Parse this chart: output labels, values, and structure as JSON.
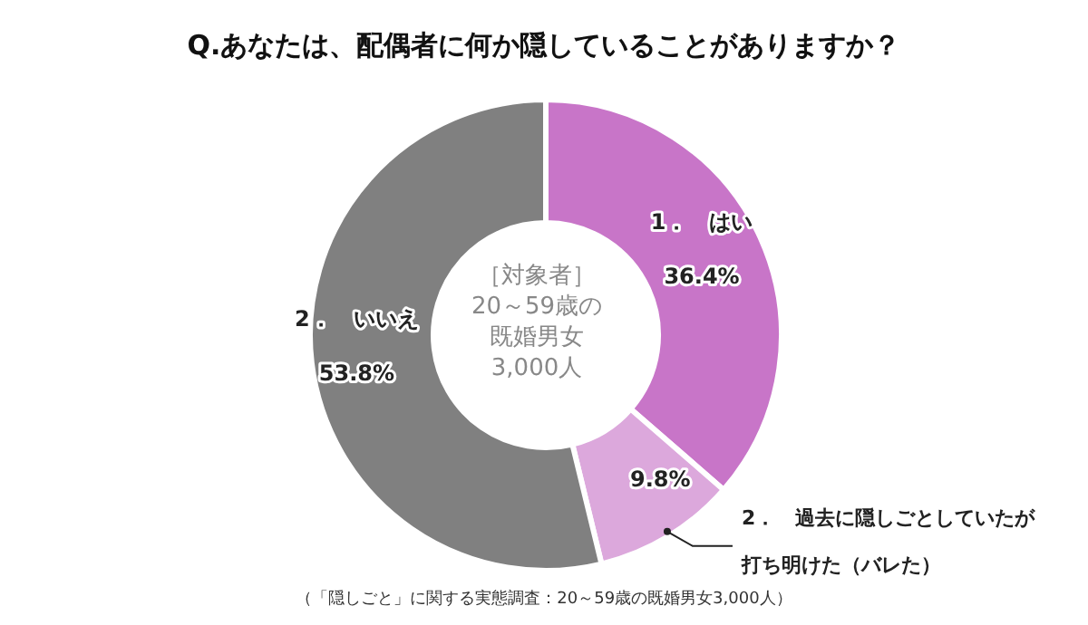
{
  "chart_data": {
    "type": "donut",
    "title": "Q.あなたは、配偶者に何か隠していることがありますか？",
    "categories": [
      "1．　はい",
      "2．　過去に隠しごとしていたが打ち明けた（バレた）",
      "2．　いいえ"
    ],
    "values": [
      36.4,
      9.8,
      53.8
    ],
    "value_labels": [
      "36.4%",
      "9.8%",
      "53.8%"
    ],
    "colors": [
      "#c875c8",
      "#dca8dc",
      "#808080"
    ],
    "legend": false,
    "annotations": [
      "［対象者］",
      "20～59歳の",
      "既婚男女",
      "3,000人",
      "（「隠しごと」に関する実態調査：20～59歳の既婚男女3,000人）"
    ]
  }
}
